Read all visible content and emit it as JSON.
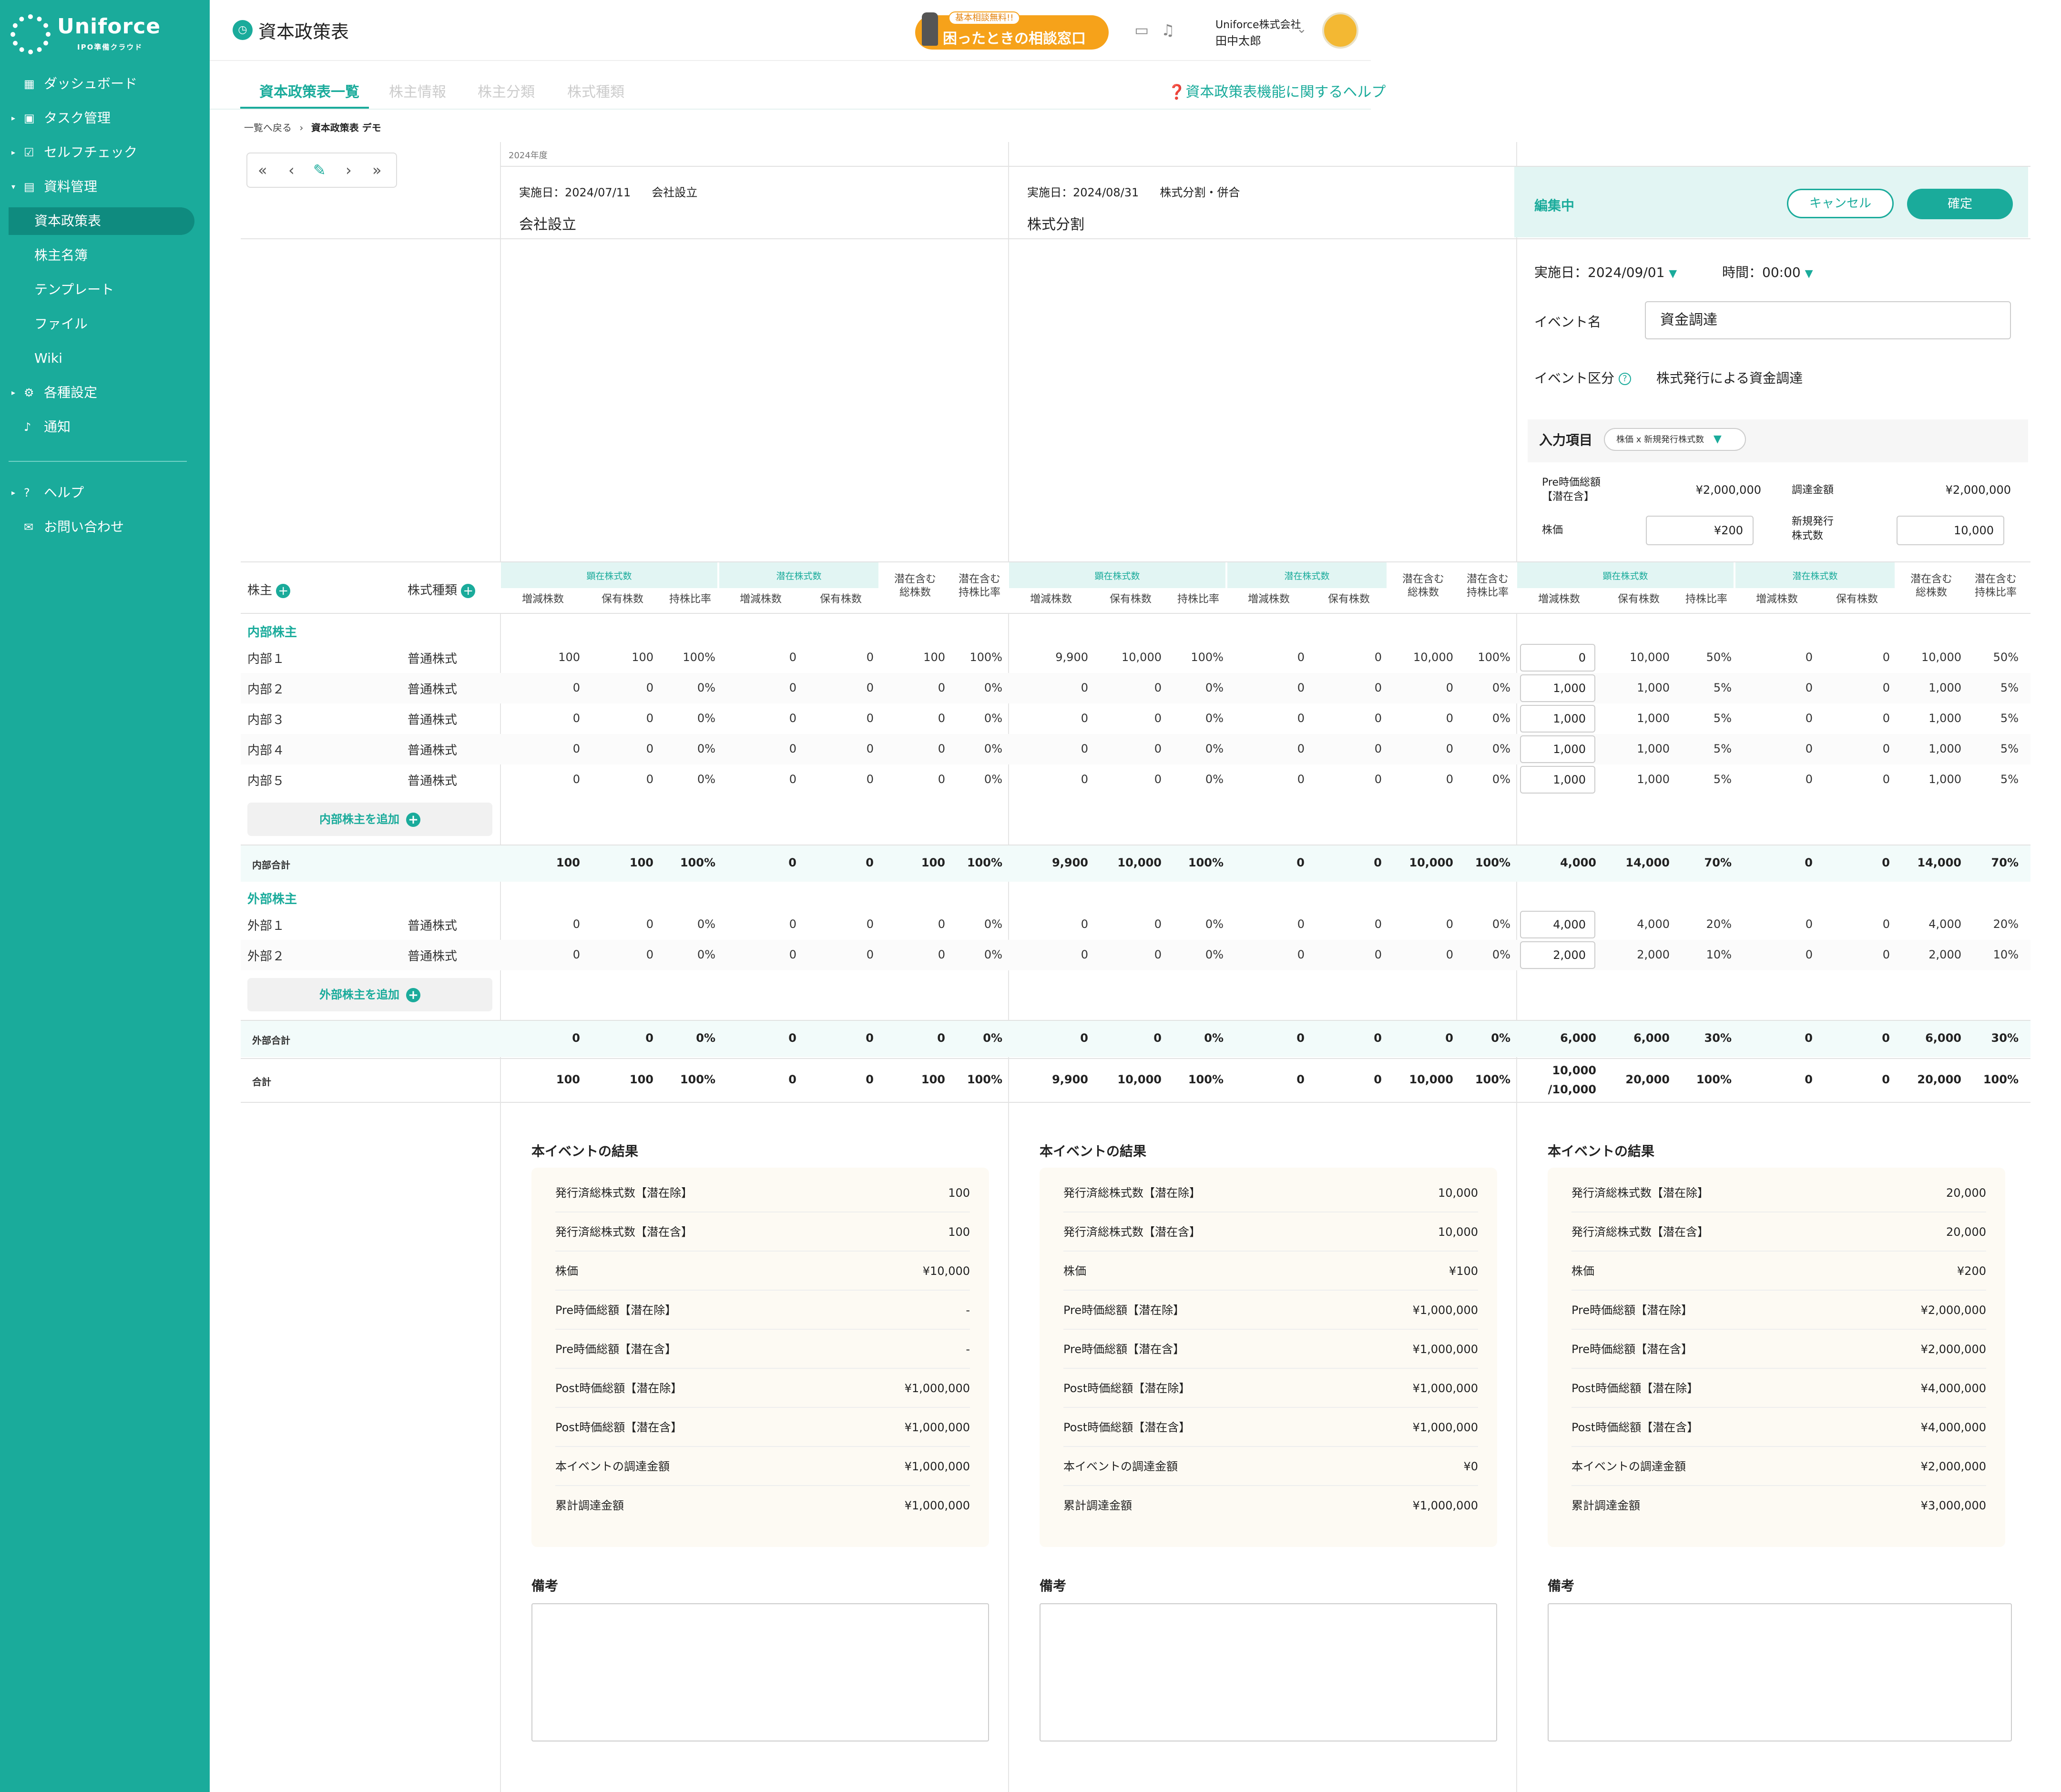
{
  "brand": {
    "name": "Uniforce",
    "tagline": "IPO準備クラウド"
  },
  "sidebar": {
    "dashboard": "ダッシュボード",
    "tasks": "タスク管理",
    "selfcheck": "セルフチェック",
    "docs": "資料管理",
    "docs_items": [
      "資本政策表",
      "株主名簿",
      "テンプレート",
      "ファイル",
      "Wiki"
    ],
    "settings": "各種設定",
    "notice": "通知",
    "help": "ヘルプ",
    "contact": "お問い合わせ"
  },
  "header": {
    "title": "資本政策表",
    "consult_badge": "基本相談無料!!",
    "consult_label": "困ったときの相談窓口",
    "company": "Uniforce株式会社",
    "user": "田中太郎"
  },
  "tabs": {
    "items": [
      "資本政策表一覧",
      "株主情報",
      "株主分類",
      "株式種類"
    ],
    "help": "資本政策表機能に関するヘルプ"
  },
  "breadcrumb": {
    "back": "一覧へ戻る",
    "sep": "›",
    "current": "資本政策表 デモ"
  },
  "year": "2024年度",
  "events": [
    {
      "date": "実施日：2024/07/11",
      "type": "会社設立",
      "name": "会社設立"
    },
    {
      "date": "実施日：2024/08/31",
      "type": "株式分割・併合",
      "name": "株式分割"
    }
  ],
  "edit": {
    "status": "編集中",
    "cancel": "キャンセル",
    "ok": "確定",
    "date": "実施日：2024/09/01",
    "time": "時間：00:00",
    "event_name_label": "イベント名",
    "event_name": "資金調達",
    "category_label": "イベント区分",
    "category": "株式発行による資金調達",
    "input_label": "入力項目",
    "input_mode": "株価 x 新規発行株式数",
    "pre_label": "Pre時価総額\n【潜在含】",
    "pre_value": "¥2,000,000",
    "raise_label": "調達金額",
    "raise_value": "¥2,000,000",
    "price_label": "株価",
    "price_value": "¥200",
    "new_label": "新規発行\n株式数",
    "new_value": "10,000"
  },
  "table": {
    "col_shareholder": "株主",
    "col_type": "株式種類",
    "grp_actual": "顕在株式数",
    "grp_latent": "潜在株式数",
    "sub": [
      "増減株数",
      "保有株数",
      "持株比率",
      "増減株数",
      "保有株数",
      "潜在含む\n総株数",
      "潜在含む\n持株比率"
    ],
    "section_internal": "内部株主",
    "section_external": "外部株主",
    "add_internal": "内部株主を追加",
    "add_external": "外部株主を追加",
    "internal_total": "内部合計",
    "external_total": "外部合計",
    "grand_total": "合計",
    "rows": [
      {
        "name": "内部１",
        "type": "普通株式",
        "v": [
          [
            "100",
            "100",
            "100%",
            "0",
            "0",
            "100",
            "100%"
          ],
          [
            "9,900",
            "10,000",
            "100%",
            "0",
            "0",
            "10,000",
            "100%"
          ],
          [
            "0",
            "10,000",
            "50%",
            "0",
            "0",
            "10,000",
            "50%"
          ]
        ]
      },
      {
        "name": "内部２",
        "type": "普通株式",
        "v": [
          [
            "0",
            "0",
            "0%",
            "0",
            "0",
            "0",
            "0%"
          ],
          [
            "0",
            "0",
            "0%",
            "0",
            "0",
            "0",
            "0%"
          ],
          [
            "1,000",
            "1,000",
            "5%",
            "0",
            "0",
            "1,000",
            "5%"
          ]
        ]
      },
      {
        "name": "内部３",
        "type": "普通株式",
        "v": [
          [
            "0",
            "0",
            "0%",
            "0",
            "0",
            "0",
            "0%"
          ],
          [
            "0",
            "0",
            "0%",
            "0",
            "0",
            "0",
            "0%"
          ],
          [
            "1,000",
            "1,000",
            "5%",
            "0",
            "0",
            "1,000",
            "5%"
          ]
        ]
      },
      {
        "name": "内部４",
        "type": "普通株式",
        "v": [
          [
            "0",
            "0",
            "0%",
            "0",
            "0",
            "0",
            "0%"
          ],
          [
            "0",
            "0",
            "0%",
            "0",
            "0",
            "0",
            "0%"
          ],
          [
            "1,000",
            "1,000",
            "5%",
            "0",
            "0",
            "1,000",
            "5%"
          ]
        ]
      },
      {
        "name": "内部５",
        "type": "普通株式",
        "v": [
          [
            "0",
            "0",
            "0%",
            "0",
            "0",
            "0",
            "0%"
          ],
          [
            "0",
            "0",
            "0%",
            "0",
            "0",
            "0",
            "0%"
          ],
          [
            "1,000",
            "1,000",
            "5%",
            "0",
            "0",
            "1,000",
            "5%"
          ]
        ]
      }
    ],
    "internal_sum": [
      [
        "100",
        "100",
        "100%",
        "0",
        "0",
        "100",
        "100%"
      ],
      [
        "9,900",
        "10,000",
        "100%",
        "0",
        "0",
        "10,000",
        "100%"
      ],
      [
        "4,000",
        "14,000",
        "70%",
        "0",
        "0",
        "14,000",
        "70%"
      ]
    ],
    "ext_rows": [
      {
        "name": "外部１",
        "type": "普通株式",
        "v": [
          [
            "0",
            "0",
            "0%",
            "0",
            "0",
            "0",
            "0%"
          ],
          [
            "0",
            "0",
            "0%",
            "0",
            "0",
            "0",
            "0%"
          ],
          [
            "4,000",
            "4,000",
            "20%",
            "0",
            "0",
            "4,000",
            "20%"
          ]
        ]
      },
      {
        "name": "外部２",
        "type": "普通株式",
        "v": [
          [
            "0",
            "0",
            "0%",
            "0",
            "0",
            "0",
            "0%"
          ],
          [
            "0",
            "0",
            "0%",
            "0",
            "0",
            "0",
            "0%"
          ],
          [
            "2,000",
            "2,000",
            "10%",
            "0",
            "0",
            "2,000",
            "10%"
          ]
        ]
      }
    ],
    "external_sum": [
      [
        "0",
        "0",
        "0%",
        "0",
        "0",
        "0",
        "0%"
      ],
      [
        "0",
        "0",
        "0%",
        "0",
        "0",
        "0",
        "0%"
      ],
      [
        "6,000",
        "6,000",
        "30%",
        "0",
        "0",
        "6,000",
        "30%"
      ]
    ],
    "grand_sum": [
      [
        "100",
        "100",
        "100%",
        "0",
        "0",
        "100",
        "100%"
      ],
      [
        "9,900",
        "10,000",
        "100%",
        "0",
        "0",
        "10,000",
        "100%"
      ],
      [
        "10,000\n/10,000",
        "20,000",
        "100%",
        "0",
        "0",
        "20,000",
        "100%"
      ]
    ]
  },
  "results": {
    "title": "本イベントの結果",
    "notes": "備考",
    "labels": [
      "発行済総株式数【潜在除】",
      "発行済総株式数【潜在含】",
      "株価",
      "Pre時価総額【潜在除】",
      "Pre時価総額【潜在含】",
      "Post時価総額【潜在除】",
      "Post時価総額【潜在含】",
      "本イベントの調達金額",
      "累計調達金額"
    ],
    "values": [
      [
        "100",
        "100",
        "¥10,000",
        "-",
        "-",
        "¥1,000,000",
        "¥1,000,000",
        "¥1,000,000",
        "¥1,000,000"
      ],
      [
        "10,000",
        "10,000",
        "¥100",
        "¥1,000,000",
        "¥1,000,000",
        "¥1,000,000",
        "¥1,000,000",
        "¥0",
        "¥1,000,000"
      ],
      [
        "20,000",
        "20,000",
        "¥200",
        "¥2,000,000",
        "¥2,000,000",
        "¥4,000,000",
        "¥4,000,000",
        "¥2,000,000",
        "¥3,000,000"
      ]
    ]
  },
  "colors": {
    "primary": "#1aab9b",
    "accent": "#f6a21a"
  },
  "icons": {
    "menu": [
      "dashboard-icon",
      "task-icon",
      "selfcheck-icon",
      "document-icon",
      "gear-icon",
      "bell-icon",
      "help-icon",
      "mail-icon"
    ]
  }
}
